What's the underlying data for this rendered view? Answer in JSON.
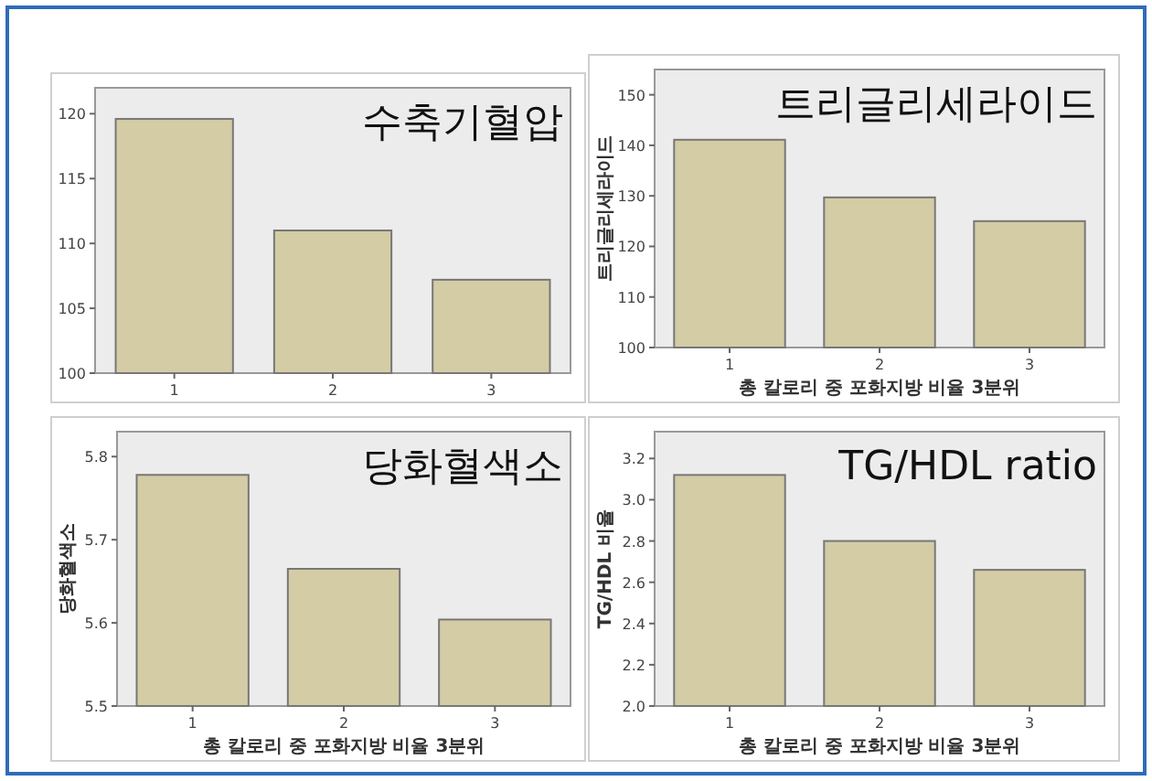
{
  "chart_data": [
    {
      "type": "bar",
      "categories": [
        "1",
        "2",
        "3"
      ],
      "values": [
        119.6,
        111.0,
        107.2
      ],
      "color": "#d3cca5",
      "ylim": [
        100,
        122
      ],
      "yticks": [
        100,
        105,
        110,
        115,
        120
      ],
      "annotations": [
        "수축기혈압"
      ]
    },
    {
      "type": "bar",
      "categories": [
        "1",
        "2",
        "3"
      ],
      "values": [
        141.1,
        129.7,
        125.0
      ],
      "color": "#d3cca5",
      "ylim": [
        100,
        155
      ],
      "yticks": [
        100,
        110,
        120,
        130,
        140,
        150
      ],
      "ylabel": "트리글리세라이드",
      "xlabel": "총 칼로리 중 포화지방 비율 3분위",
      "annotations": [
        "트리글리세라이드"
      ]
    },
    {
      "type": "bar",
      "categories": [
        "1",
        "2",
        "3"
      ],
      "values": [
        5.778,
        5.665,
        5.604
      ],
      "color": "#d3cca5",
      "ylim": [
        5.5,
        5.83
      ],
      "yticks": [
        {
          "value": 5.5,
          "label": "5.5"
        },
        {
          "value": 5.6,
          "label": "5.6"
        },
        {
          "value": 5.7,
          "label": "5.7"
        },
        {
          "value": 5.8,
          "label": "5.8"
        }
      ],
      "ylabel": "당화혈색소",
      "xlabel": "총 칼로리 중 포화지방 비율 3분위",
      "annotations": [
        "당화혈색소"
      ]
    },
    {
      "type": "bar",
      "categories": [
        "1",
        "2",
        "3"
      ],
      "values": [
        3.12,
        2.8,
        2.66
      ],
      "color": "#d3cca5",
      "ylim": [
        2.0,
        3.33
      ],
      "yticks": [
        {
          "value": 2.0,
          "label": "2.0"
        },
        {
          "value": 2.2,
          "label": "2.2"
        },
        {
          "value": 2.4,
          "label": "2.4"
        },
        {
          "value": 2.6,
          "label": "2.6"
        },
        {
          "value": 2.8,
          "label": "2.8"
        },
        {
          "value": 3.0,
          "label": "3.0"
        },
        {
          "value": 3.2,
          "label": "3.2"
        }
      ],
      "ylabel": "TG/HDL 비율",
      "xlabel": "총 칼로리 중 포화지방 비율 3분위",
      "annotations": [
        "TG/HDL ratio"
      ]
    }
  ]
}
